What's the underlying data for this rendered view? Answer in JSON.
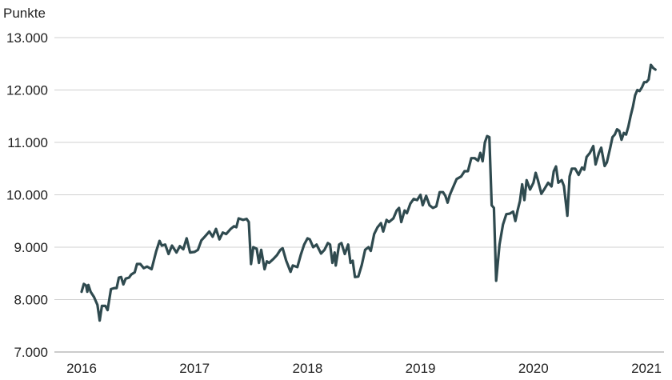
{
  "chart_data": {
    "type": "line",
    "y_unit_label": "Punkte",
    "ylim": [
      7000,
      13000
    ],
    "y_ticks": [
      {
        "value": 7000,
        "label": "7.000"
      },
      {
        "value": 8000,
        "label": "8.000"
      },
      {
        "value": 9000,
        "label": "9.000"
      },
      {
        "value": 10000,
        "label": "10.000"
      },
      {
        "value": 11000,
        "label": "11.000"
      },
      {
        "value": 12000,
        "label": "12.000"
      },
      {
        "value": 13000,
        "label": "13.000"
      }
    ],
    "xlim": [
      2015.85,
      2021.2
    ],
    "x_ticks": [
      {
        "value": 2016,
        "label": "2016"
      },
      {
        "value": 2017,
        "label": "2017"
      },
      {
        "value": 2018,
        "label": "2018"
      },
      {
        "value": 2019,
        "label": "2019"
      },
      {
        "value": 2020,
        "label": "2020"
      },
      {
        "value": 2021,
        "label": "2021"
      }
    ],
    "grid": true,
    "line_color": "#2f4a4f",
    "series": [
      {
        "points": [
          [
            2016.0,
            8150
          ],
          [
            2016.02,
            8300
          ],
          [
            2016.04,
            8270
          ],
          [
            2016.05,
            8150
          ],
          [
            2016.06,
            8280
          ],
          [
            2016.08,
            8150
          ],
          [
            2016.11,
            8050
          ],
          [
            2016.14,
            7900
          ],
          [
            2016.16,
            7600
          ],
          [
            2016.18,
            7880
          ],
          [
            2016.21,
            7880
          ],
          [
            2016.23,
            7800
          ],
          [
            2016.26,
            8200
          ],
          [
            2016.29,
            8220
          ],
          [
            2016.31,
            8220
          ],
          [
            2016.33,
            8420
          ],
          [
            2016.35,
            8430
          ],
          [
            2016.37,
            8290
          ],
          [
            2016.39,
            8400
          ],
          [
            2016.42,
            8420
          ],
          [
            2016.44,
            8480
          ],
          [
            2016.47,
            8520
          ],
          [
            2016.49,
            8680
          ],
          [
            2016.52,
            8680
          ],
          [
            2016.55,
            8600
          ],
          [
            2016.58,
            8630
          ],
          [
            2016.62,
            8580
          ],
          [
            2016.66,
            8920
          ],
          [
            2016.69,
            9120
          ],
          [
            2016.71,
            9030
          ],
          [
            2016.74,
            9050
          ],
          [
            2016.77,
            8870
          ],
          [
            2016.8,
            9030
          ],
          [
            2016.84,
            8900
          ],
          [
            2016.87,
            9020
          ],
          [
            2016.9,
            8960
          ],
          [
            2016.93,
            9170
          ],
          [
            2016.96,
            8900
          ],
          [
            2017.0,
            8910
          ],
          [
            2017.03,
            8950
          ],
          [
            2017.06,
            9130
          ],
          [
            2017.09,
            9200
          ],
          [
            2017.13,
            9300
          ],
          [
            2017.16,
            9200
          ],
          [
            2017.19,
            9350
          ],
          [
            2017.22,
            9150
          ],
          [
            2017.25,
            9280
          ],
          [
            2017.28,
            9250
          ],
          [
            2017.32,
            9350
          ],
          [
            2017.35,
            9400
          ],
          [
            2017.37,
            9380
          ],
          [
            2017.39,
            9550
          ],
          [
            2017.43,
            9520
          ],
          [
            2017.46,
            9540
          ],
          [
            2017.48,
            9480
          ],
          [
            2017.5,
            8680
          ],
          [
            2017.52,
            9000
          ],
          [
            2017.55,
            8970
          ],
          [
            2017.57,
            8700
          ],
          [
            2017.59,
            8950
          ],
          [
            2017.62,
            8580
          ],
          [
            2017.64,
            8730
          ],
          [
            2017.66,
            8700
          ],
          [
            2017.7,
            8780
          ],
          [
            2017.73,
            8850
          ],
          [
            2017.76,
            8950
          ],
          [
            2017.78,
            8980
          ],
          [
            2017.81,
            8750
          ],
          [
            2017.85,
            8530
          ],
          [
            2017.87,
            8650
          ],
          [
            2017.91,
            8620
          ],
          [
            2017.94,
            8850
          ],
          [
            2017.97,
            9050
          ],
          [
            2018.0,
            9170
          ],
          [
            2018.02,
            9150
          ],
          [
            2018.05,
            9000
          ],
          [
            2018.08,
            9050
          ],
          [
            2018.12,
            8880
          ],
          [
            2018.15,
            8950
          ],
          [
            2018.18,
            9080
          ],
          [
            2018.2,
            9050
          ],
          [
            2018.22,
            8700
          ],
          [
            2018.24,
            8900
          ],
          [
            2018.25,
            8650
          ],
          [
            2018.28,
            9050
          ],
          [
            2018.3,
            9080
          ],
          [
            2018.33,
            8870
          ],
          [
            2018.36,
            9050
          ],
          [
            2018.38,
            8700
          ],
          [
            2018.4,
            8740
          ],
          [
            2018.42,
            8430
          ],
          [
            2018.45,
            8440
          ],
          [
            2018.48,
            8660
          ],
          [
            2018.51,
            8950
          ],
          [
            2018.54,
            9000
          ],
          [
            2018.56,
            8930
          ],
          [
            2018.59,
            9250
          ],
          [
            2018.62,
            9380
          ],
          [
            2018.65,
            9460
          ],
          [
            2018.67,
            9300
          ],
          [
            2018.7,
            9520
          ],
          [
            2018.72,
            9480
          ],
          [
            2018.76,
            9550
          ],
          [
            2018.79,
            9700
          ],
          [
            2018.81,
            9750
          ],
          [
            2018.83,
            9480
          ],
          [
            2018.86,
            9700
          ],
          [
            2018.88,
            9650
          ],
          [
            2018.91,
            9830
          ],
          [
            2018.94,
            9920
          ],
          [
            2018.97,
            9900
          ],
          [
            2019.0,
            10000
          ],
          [
            2019.02,
            9800
          ],
          [
            2019.05,
            9980
          ],
          [
            2019.08,
            9800
          ],
          [
            2019.11,
            9750
          ],
          [
            2019.14,
            9780
          ],
          [
            2019.17,
            10050
          ],
          [
            2019.2,
            10050
          ],
          [
            2019.22,
            9980
          ],
          [
            2019.24,
            9850
          ],
          [
            2019.26,
            10000
          ],
          [
            2019.29,
            10150
          ],
          [
            2019.32,
            10300
          ],
          [
            2019.36,
            10350
          ],
          [
            2019.39,
            10450
          ],
          [
            2019.42,
            10450
          ],
          [
            2019.45,
            10700
          ],
          [
            2019.48,
            10700
          ],
          [
            2019.51,
            10650
          ],
          [
            2019.53,
            10800
          ],
          [
            2019.55,
            10640
          ],
          [
            2019.57,
            11000
          ],
          [
            2019.59,
            11120
          ],
          [
            2019.61,
            11100
          ],
          [
            2019.63,
            9800
          ],
          [
            2019.65,
            9750
          ],
          [
            2019.67,
            8360
          ],
          [
            2019.7,
            9050
          ],
          [
            2019.73,
            9430
          ],
          [
            2019.76,
            9630
          ],
          [
            2019.79,
            9640
          ],
          [
            2019.82,
            9680
          ],
          [
            2019.84,
            9500
          ],
          [
            2019.86,
            9700
          ],
          [
            2019.88,
            9880
          ],
          [
            2019.9,
            10200
          ],
          [
            2019.92,
            9900
          ],
          [
            2019.94,
            10280
          ],
          [
            2019.97,
            10100
          ],
          [
            2020.0,
            10230
          ],
          [
            2020.02,
            10420
          ],
          [
            2020.04,
            10280
          ],
          [
            2020.07,
            10020
          ],
          [
            2020.1,
            10120
          ],
          [
            2020.13,
            10230
          ],
          [
            2020.16,
            10160
          ],
          [
            2020.18,
            10450
          ],
          [
            2020.2,
            10540
          ],
          [
            2020.22,
            10230
          ],
          [
            2020.25,
            10280
          ],
          [
            2020.27,
            10170
          ],
          [
            2020.3,
            9600
          ],
          [
            2020.32,
            10350
          ],
          [
            2020.34,
            10500
          ],
          [
            2020.37,
            10500
          ],
          [
            2020.4,
            10380
          ],
          [
            2020.43,
            10520
          ],
          [
            2020.45,
            10480
          ],
          [
            2020.47,
            10720
          ],
          [
            2020.5,
            10800
          ],
          [
            2020.53,
            10930
          ],
          [
            2020.55,
            10580
          ],
          [
            2020.58,
            10800
          ],
          [
            2020.6,
            10900
          ],
          [
            2020.63,
            10550
          ],
          [
            2020.65,
            10620
          ],
          [
            2020.68,
            10900
          ],
          [
            2020.7,
            11100
          ],
          [
            2020.72,
            11150
          ],
          [
            2020.74,
            11250
          ],
          [
            2020.76,
            11220
          ],
          [
            2020.78,
            11050
          ],
          [
            2020.8,
            11180
          ],
          [
            2020.82,
            11150
          ],
          [
            2020.84,
            11300
          ],
          [
            2020.86,
            11500
          ],
          [
            2020.88,
            11680
          ],
          [
            2020.9,
            11900
          ],
          [
            2020.92,
            12000
          ],
          [
            2020.94,
            11980
          ],
          [
            2020.96,
            12050
          ],
          [
            2020.98,
            12150
          ],
          [
            2021.0,
            12150
          ],
          [
            2021.02,
            12200
          ],
          [
            2021.04,
            12480
          ],
          [
            2021.06,
            12420
          ],
          [
            2021.08,
            12390
          ]
        ]
      }
    ]
  }
}
